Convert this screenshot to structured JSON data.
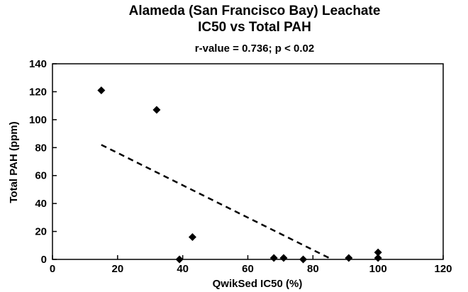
{
  "chart_data": {
    "type": "scatter",
    "title_lines": [
      "Alameda (San Francisco Bay) Leachate",
      "IC50 vs Total PAH"
    ],
    "subtitle": "r-value = 0.736; p < 0.02",
    "xlabel": "QwikSed IC50 (%)",
    "ylabel": "Total PAH (ppm)",
    "xlim": [
      0,
      120
    ],
    "ylim": [
      0,
      140
    ],
    "x_ticks": [
      0,
      20,
      40,
      60,
      80,
      100,
      120
    ],
    "y_ticks": [
      0,
      20,
      40,
      60,
      80,
      100,
      120,
      140
    ],
    "grid": false,
    "marker": "diamond",
    "points": [
      {
        "x": 15,
        "y": 121
      },
      {
        "x": 32,
        "y": 107
      },
      {
        "x": 39,
        "y": 0
      },
      {
        "x": 43,
        "y": 16
      },
      {
        "x": 68,
        "y": 1
      },
      {
        "x": 71,
        "y": 1
      },
      {
        "x": 77,
        "y": 0
      },
      {
        "x": 91,
        "y": 1
      },
      {
        "x": 100,
        "y": 5
      },
      {
        "x": 100,
        "y": 1
      }
    ],
    "trendline": {
      "style": "dashed",
      "x": [
        15,
        85
      ],
      "y": [
        82,
        1
      ]
    }
  }
}
